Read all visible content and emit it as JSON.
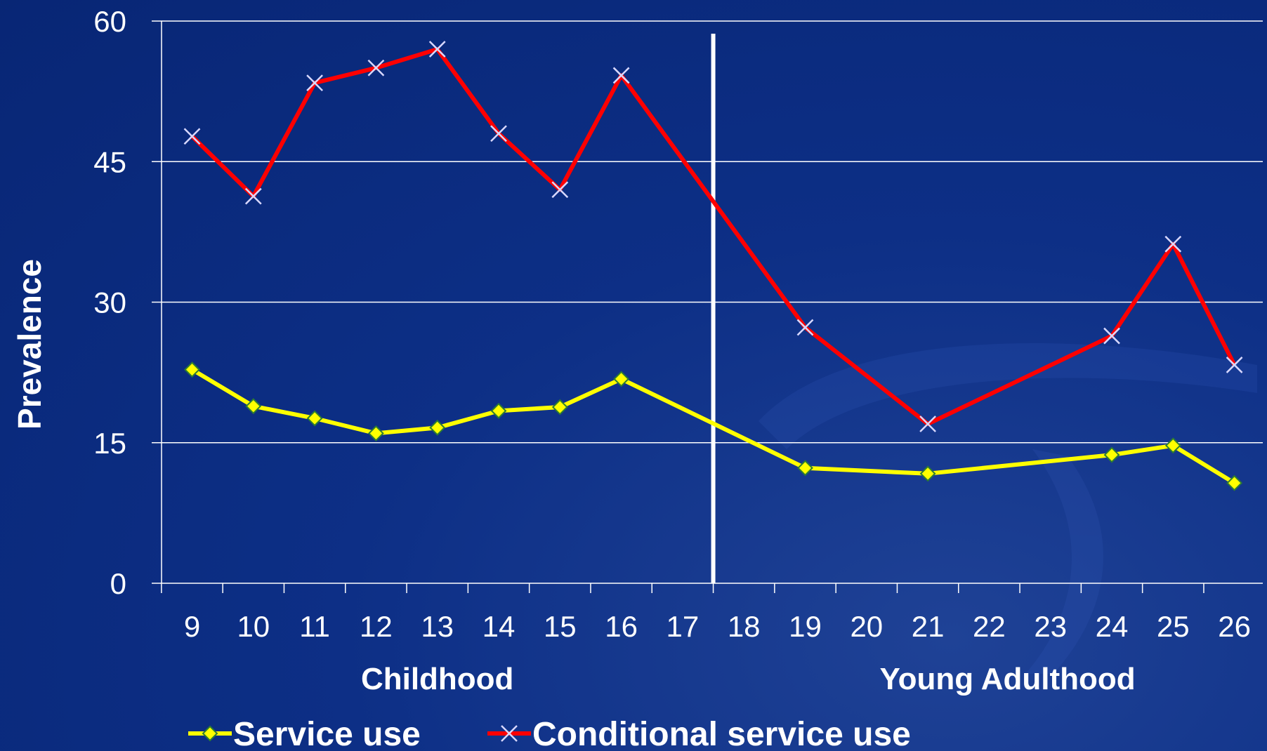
{
  "chart_data": {
    "type": "line",
    "ylabel": "Prevalence",
    "ylim": [
      0,
      60
    ],
    "yticks": [
      0,
      15,
      30,
      45,
      60
    ],
    "x": [
      9,
      10,
      11,
      12,
      13,
      14,
      15,
      16,
      17,
      18,
      19,
      20,
      21,
      22,
      23,
      24,
      25,
      26
    ],
    "x_labels": [
      "9",
      "10",
      "11",
      "12",
      "13",
      "14",
      "15",
      "16",
      "17",
      "18",
      "19",
      "20",
      "21",
      "22",
      "23",
      "24",
      "25",
      "26"
    ],
    "divider_between": [
      17,
      18
    ],
    "groups": [
      {
        "label": "Childhood",
        "center_x": 13
      },
      {
        "label": "Young Adulthood",
        "center_x": 22.3
      }
    ],
    "series": [
      {
        "name": "Service use",
        "color": "#ffff00",
        "marker": "diamond",
        "points": [
          [
            9,
            22.8
          ],
          [
            10,
            18.9
          ],
          [
            11,
            17.6
          ],
          [
            12,
            16.0
          ],
          [
            13,
            16.6
          ],
          [
            14,
            18.4
          ],
          [
            15,
            18.8
          ],
          [
            16,
            21.8
          ],
          [
            19,
            12.3
          ],
          [
            21,
            11.7
          ],
          [
            24,
            13.7
          ],
          [
            25,
            14.7
          ],
          [
            26,
            10.7
          ]
        ]
      },
      {
        "name": "Conditional service use",
        "color": "#ff0000",
        "marker": "x",
        "points": [
          [
            9,
            47.7
          ],
          [
            10,
            41.3
          ],
          [
            11,
            53.4
          ],
          [
            12,
            55.0
          ],
          [
            13,
            57.0
          ],
          [
            14,
            48.0
          ],
          [
            15,
            42.0
          ],
          [
            16,
            54.2
          ],
          [
            19,
            27.3
          ],
          [
            21,
            17.0
          ],
          [
            24,
            26.4
          ],
          [
            25,
            36.2
          ],
          [
            26,
            23.3
          ]
        ]
      }
    ],
    "grid": true,
    "legend": "bottom"
  }
}
